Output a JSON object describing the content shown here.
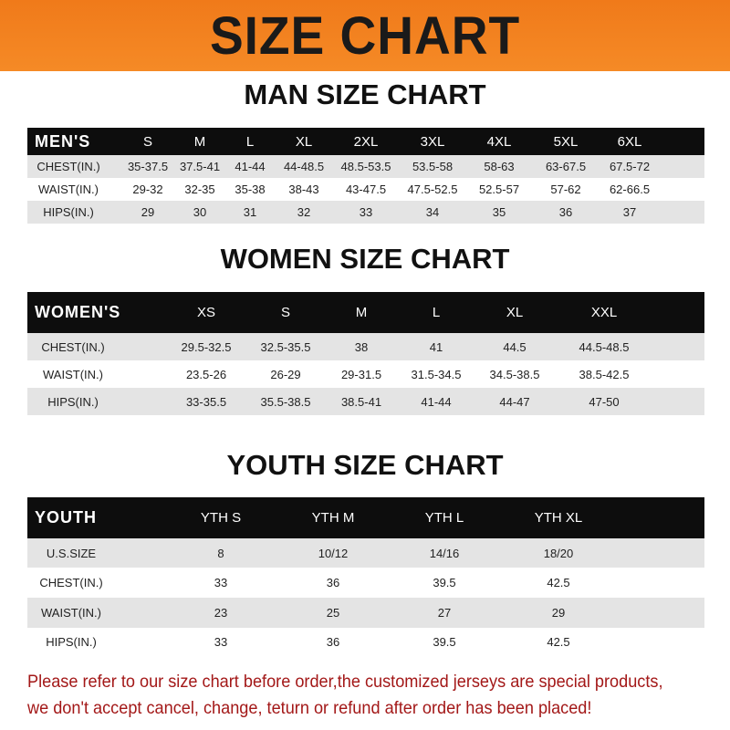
{
  "title": "SIZE CHART",
  "men": {
    "title": "MAN SIZE CHART",
    "header": [
      "MEN'S",
      "S",
      "M",
      "L",
      "XL",
      "2XL",
      "3XL",
      "4XL",
      "5XL",
      "6XL"
    ],
    "rows": [
      [
        "CHEST(IN.)",
        "35-37.5",
        "37.5-41",
        "41-44",
        "44-48.5",
        "48.5-53.5",
        "53.5-58",
        "58-63",
        "63-67.5",
        "67.5-72"
      ],
      [
        "WAIST(IN.)",
        "29-32",
        "32-35",
        "35-38",
        "38-43",
        "43-47.5",
        "47.5-52.5",
        "52.5-57",
        "57-62",
        "62-66.5"
      ],
      [
        "HIPS(IN.)",
        "29",
        "30",
        "31",
        "32",
        "33",
        "34",
        "35",
        "36",
        "37"
      ]
    ]
  },
  "women": {
    "title": "WOMEN SIZE CHART",
    "header": [
      "WOMEN'S",
      "XS",
      "S",
      "M",
      "L",
      "XL",
      "XXL"
    ],
    "rows": [
      [
        "CHEST(IN.)",
        "29.5-32.5",
        "32.5-35.5",
        "38",
        "41",
        "44.5",
        "44.5-48.5"
      ],
      [
        "WAIST(IN.)",
        "23.5-26",
        "26-29",
        "29-31.5",
        "31.5-34.5",
        "34.5-38.5",
        "38.5-42.5"
      ],
      [
        "HIPS(IN.)",
        "33-35.5",
        "35.5-38.5",
        "38.5-41",
        "41-44",
        "44-47",
        "47-50"
      ]
    ]
  },
  "youth": {
    "title": "YOUTH SIZE CHART",
    "header": [
      "YOUTH",
      "YTH S",
      "YTH M",
      "YTH L",
      "YTH XL"
    ],
    "rows": [
      [
        "U.S.SIZE",
        "8",
        "10/12",
        "14/16",
        "18/20"
      ],
      [
        "CHEST(IN.)",
        "33",
        "36",
        "39.5",
        "42.5"
      ],
      [
        "WAIST(IN.)",
        "23",
        "25",
        "27",
        "29"
      ],
      [
        "HIPS(IN.)",
        "33",
        "36",
        "39.5",
        "42.5"
      ]
    ]
  },
  "notice": [
    "Please refer to our size chart before order,the customized jerseys are special products,",
    "we don't accept cancel, change, teturn or refund after order has been placed!"
  ],
  "colors": {
    "banner": "#f58a26",
    "header_row": "#0d0d0d",
    "stripe": "#e4e4e4",
    "notice": "#a31818"
  }
}
